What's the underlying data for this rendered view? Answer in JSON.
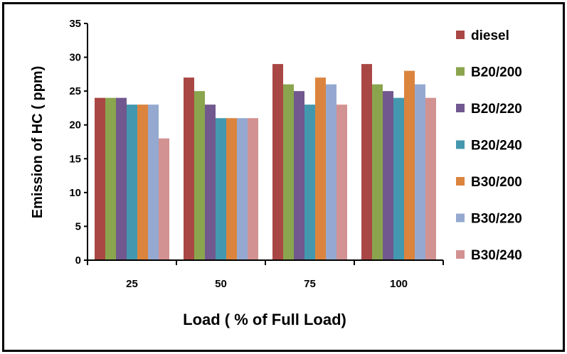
{
  "chart_data": {
    "type": "bar",
    "title": "",
    "xlabel": "Load ( % of Full Load)",
    "ylabel": "Emission of HC ( ppm)",
    "categories": [
      "25",
      "50",
      "75",
      "100"
    ],
    "ylim": [
      0,
      35
    ],
    "yticks": [
      "0",
      "5",
      "10",
      "15",
      "20",
      "25",
      "30",
      "35"
    ],
    "legend_position": "right",
    "grid": false,
    "series": [
      {
        "name": "diesel",
        "color": "#A94745",
        "values": [
          24,
          27,
          29,
          29
        ]
      },
      {
        "name": "B20/200",
        "color": "#8AA54E",
        "values": [
          24,
          25,
          26,
          26
        ]
      },
      {
        "name": "B20/220",
        "color": "#71588E",
        "values": [
          24,
          23,
          25,
          25
        ]
      },
      {
        "name": "B20/240",
        "color": "#4398AF",
        "values": [
          23,
          21,
          23,
          24
        ]
      },
      {
        "name": "B30/200",
        "color": "#DB843E",
        "values": [
          23,
          21,
          27,
          28
        ]
      },
      {
        "name": "B30/220",
        "color": "#95A9D0",
        "values": [
          23,
          21,
          26,
          26
        ]
      },
      {
        "name": "B30/240",
        "color": "#D29292",
        "values": [
          18,
          21,
          23,
          24
        ]
      }
    ]
  }
}
